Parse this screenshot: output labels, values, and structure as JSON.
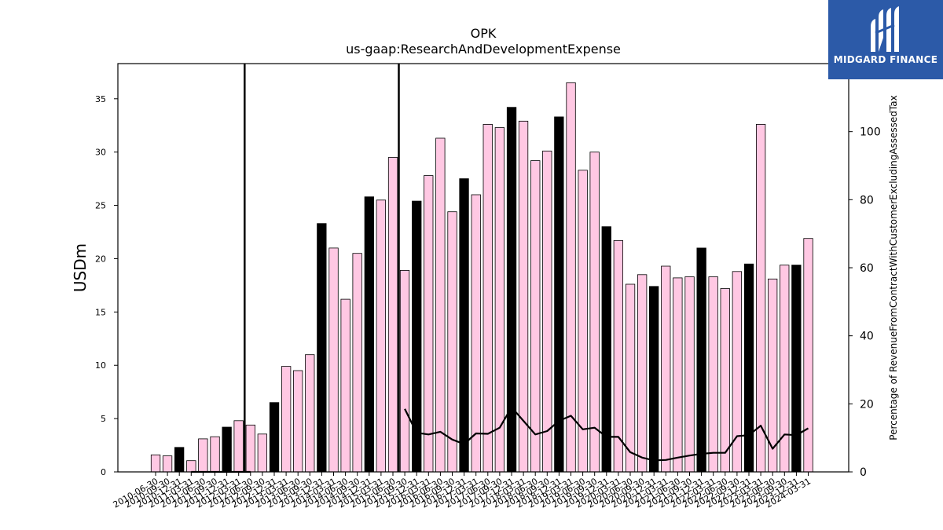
{
  "brand": {
    "name": "MIDGARD FINANCE",
    "icon": "midgard-logo-icon",
    "bg_color": "#2c5aa8"
  },
  "chart_data": {
    "type": "bar",
    "title": "OPK",
    "subtitle": "us-gaap:ResearchAndDevelopmentExpense",
    "ylabel": "USDm",
    "y2label": "Percentage of RevenueFromContractWithCustomerExcludingAssessedTax",
    "ylim": [
      0,
      38.3
    ],
    "y2lim": [
      0,
      120
    ],
    "yticks": [
      0,
      5,
      10,
      15,
      20,
      25,
      30,
      35
    ],
    "y2ticks": [
      0,
      20,
      40,
      60,
      80,
      100
    ],
    "grid": false,
    "bar_color": "#ffc8e3",
    "highlight_color": "#000000",
    "line_color": "#000000",
    "categories": [
      "2010-06-30",
      "2010-09-30",
      "2010-12-31",
      "2011-03-31",
      "2011-06-30",
      "2011-09-30",
      "2011-12-31",
      "2012-03-31",
      "2012-06-30",
      "2012-09-30",
      "2012-12-31",
      "2013-03-31",
      "2013-06-30",
      "2013-09-30",
      "2013-12-31",
      "2014-03-31",
      "2014-06-30",
      "2014-09-30",
      "2014-12-31",
      "2015-03-31",
      "2015-06-30",
      "2015-09-30",
      "2015-12-31",
      "2016-03-31",
      "2016-06-30",
      "2016-09-30",
      "2016-12-31",
      "2017-03-31",
      "2017-06-30",
      "2017-09-30",
      "2017-12-31",
      "2018-03-31",
      "2018-06-30",
      "2018-09-30",
      "2018-12-31",
      "2019-03-31",
      "2019-06-30",
      "2019-09-30",
      "2019-12-31",
      "2020-03-31",
      "2020-06-30",
      "2020-09-30",
      "2020-12-31",
      "2021-03-31",
      "2021-06-30",
      "2021-09-30",
      "2021-12-31",
      "2022-03-31",
      "2022-06-30",
      "2022-09-30",
      "2022-12-31",
      "2023-03-31",
      "2023-06-30",
      "2023-09-30",
      "2023-12-31",
      "2024-03-31"
    ],
    "visible_tick_labels": [
      "2010-06-30",
      "2010-09-30",
      "2010-12-31",
      "2011-03-31",
      "2011-06-30",
      "2011-09-30",
      "2011-12-31",
      "2012-03-31",
      "2012-06-30",
      "2012-09-30",
      "2012-12-31",
      "2013-03-31",
      "2013-06-30",
      "2013-09-30",
      "2013-12-31",
      "2014-03-31",
      "2014-06-30",
      "2014-09-30",
      "2014-12-31",
      "2015-03-31",
      "2015-06-30",
      "2015-09-30",
      "2015-12-31",
      "2016-03-31",
      "2016-06-30",
      "2016-09-30",
      "2016-12-31",
      "2017-03-31",
      "2017-06-30",
      "2017-09-30",
      "2017-12-31",
      "2018-03-31",
      "2018-06-30",
      "2018-09-30",
      "2018-12-31",
      "2019-03-31",
      "2019-06-30",
      "2019-09-30",
      "2019-12-31",
      "2020-03-31",
      "2020-06-30",
      "2020-09-30",
      "2020-12-31",
      "2021-03-31",
      "2021-06-30",
      "2021-09-30",
      "2021-12-31",
      "2022-03-31",
      "2022-06-30",
      "2022-09-30",
      "2022-12-31",
      "2023-03-31",
      "2023-06-30",
      "2023-09-30",
      "2023-12-31",
      "2024-03-31"
    ],
    "series": [
      {
        "values": [
          1.6,
          1.5,
          2.3,
          1.05,
          3.1,
          3.3,
          4.2,
          4.8,
          4.4,
          3.55,
          6.5,
          9.9,
          9.5,
          11.0,
          23.3,
          21.0,
          16.2,
          20.5,
          25.8,
          25.5,
          29.5,
          18.9,
          25.4,
          27.8,
          31.3,
          24.4,
          27.5,
          26.0,
          32.6,
          32.3,
          34.2,
          32.9,
          29.2,
          30.1,
          33.3,
          36.5,
          28.3,
          30.0,
          23.0,
          21.7,
          17.6,
          18.5,
          17.4,
          19.3,
          18.2,
          18.3,
          21.0,
          18.3,
          17.2,
          18.8,
          19.5,
          32.6,
          18.1,
          19.4,
          19.4,
          21.9
        ],
        "highlighted": [
          false,
          false,
          true,
          false,
          false,
          false,
          true,
          false,
          false,
          false,
          true,
          false,
          false,
          false,
          true,
          false,
          false,
          false,
          true,
          false,
          false,
          false,
          true,
          false,
          false,
          false,
          true,
          false,
          false,
          false,
          true,
          false,
          false,
          false,
          true,
          false,
          false,
          false,
          true,
          false,
          false,
          false,
          true,
          false,
          false,
          false,
          true,
          false,
          false,
          false,
          true,
          false,
          false,
          false,
          true,
          false
        ]
      },
      {
        "axis": "right",
        "type": "line",
        "values": [
          null,
          null,
          null,
          0,
          0,
          0,
          0,
          0,
          0,
          null,
          null,
          null,
          null,
          null,
          null,
          null,
          null,
          null,
          null,
          null,
          null,
          18.5,
          11.5,
          11.0,
          11.8,
          9.5,
          8.2,
          11.3,
          11.2,
          13.0,
          19.0,
          15.0,
          11.0,
          12.0,
          15.0,
          16.5,
          12.5,
          13.0,
          10.3,
          10.3,
          5.8,
          4.2,
          3.4,
          3.5,
          4.2,
          4.8,
          5.3,
          5.6,
          5.6,
          10.5,
          10.8,
          13.6,
          6.8,
          11.0,
          10.8,
          12.8
        ]
      }
    ],
    "vertical_lines_at": [
      "2012-06-30",
      "2015-09-30"
    ]
  }
}
